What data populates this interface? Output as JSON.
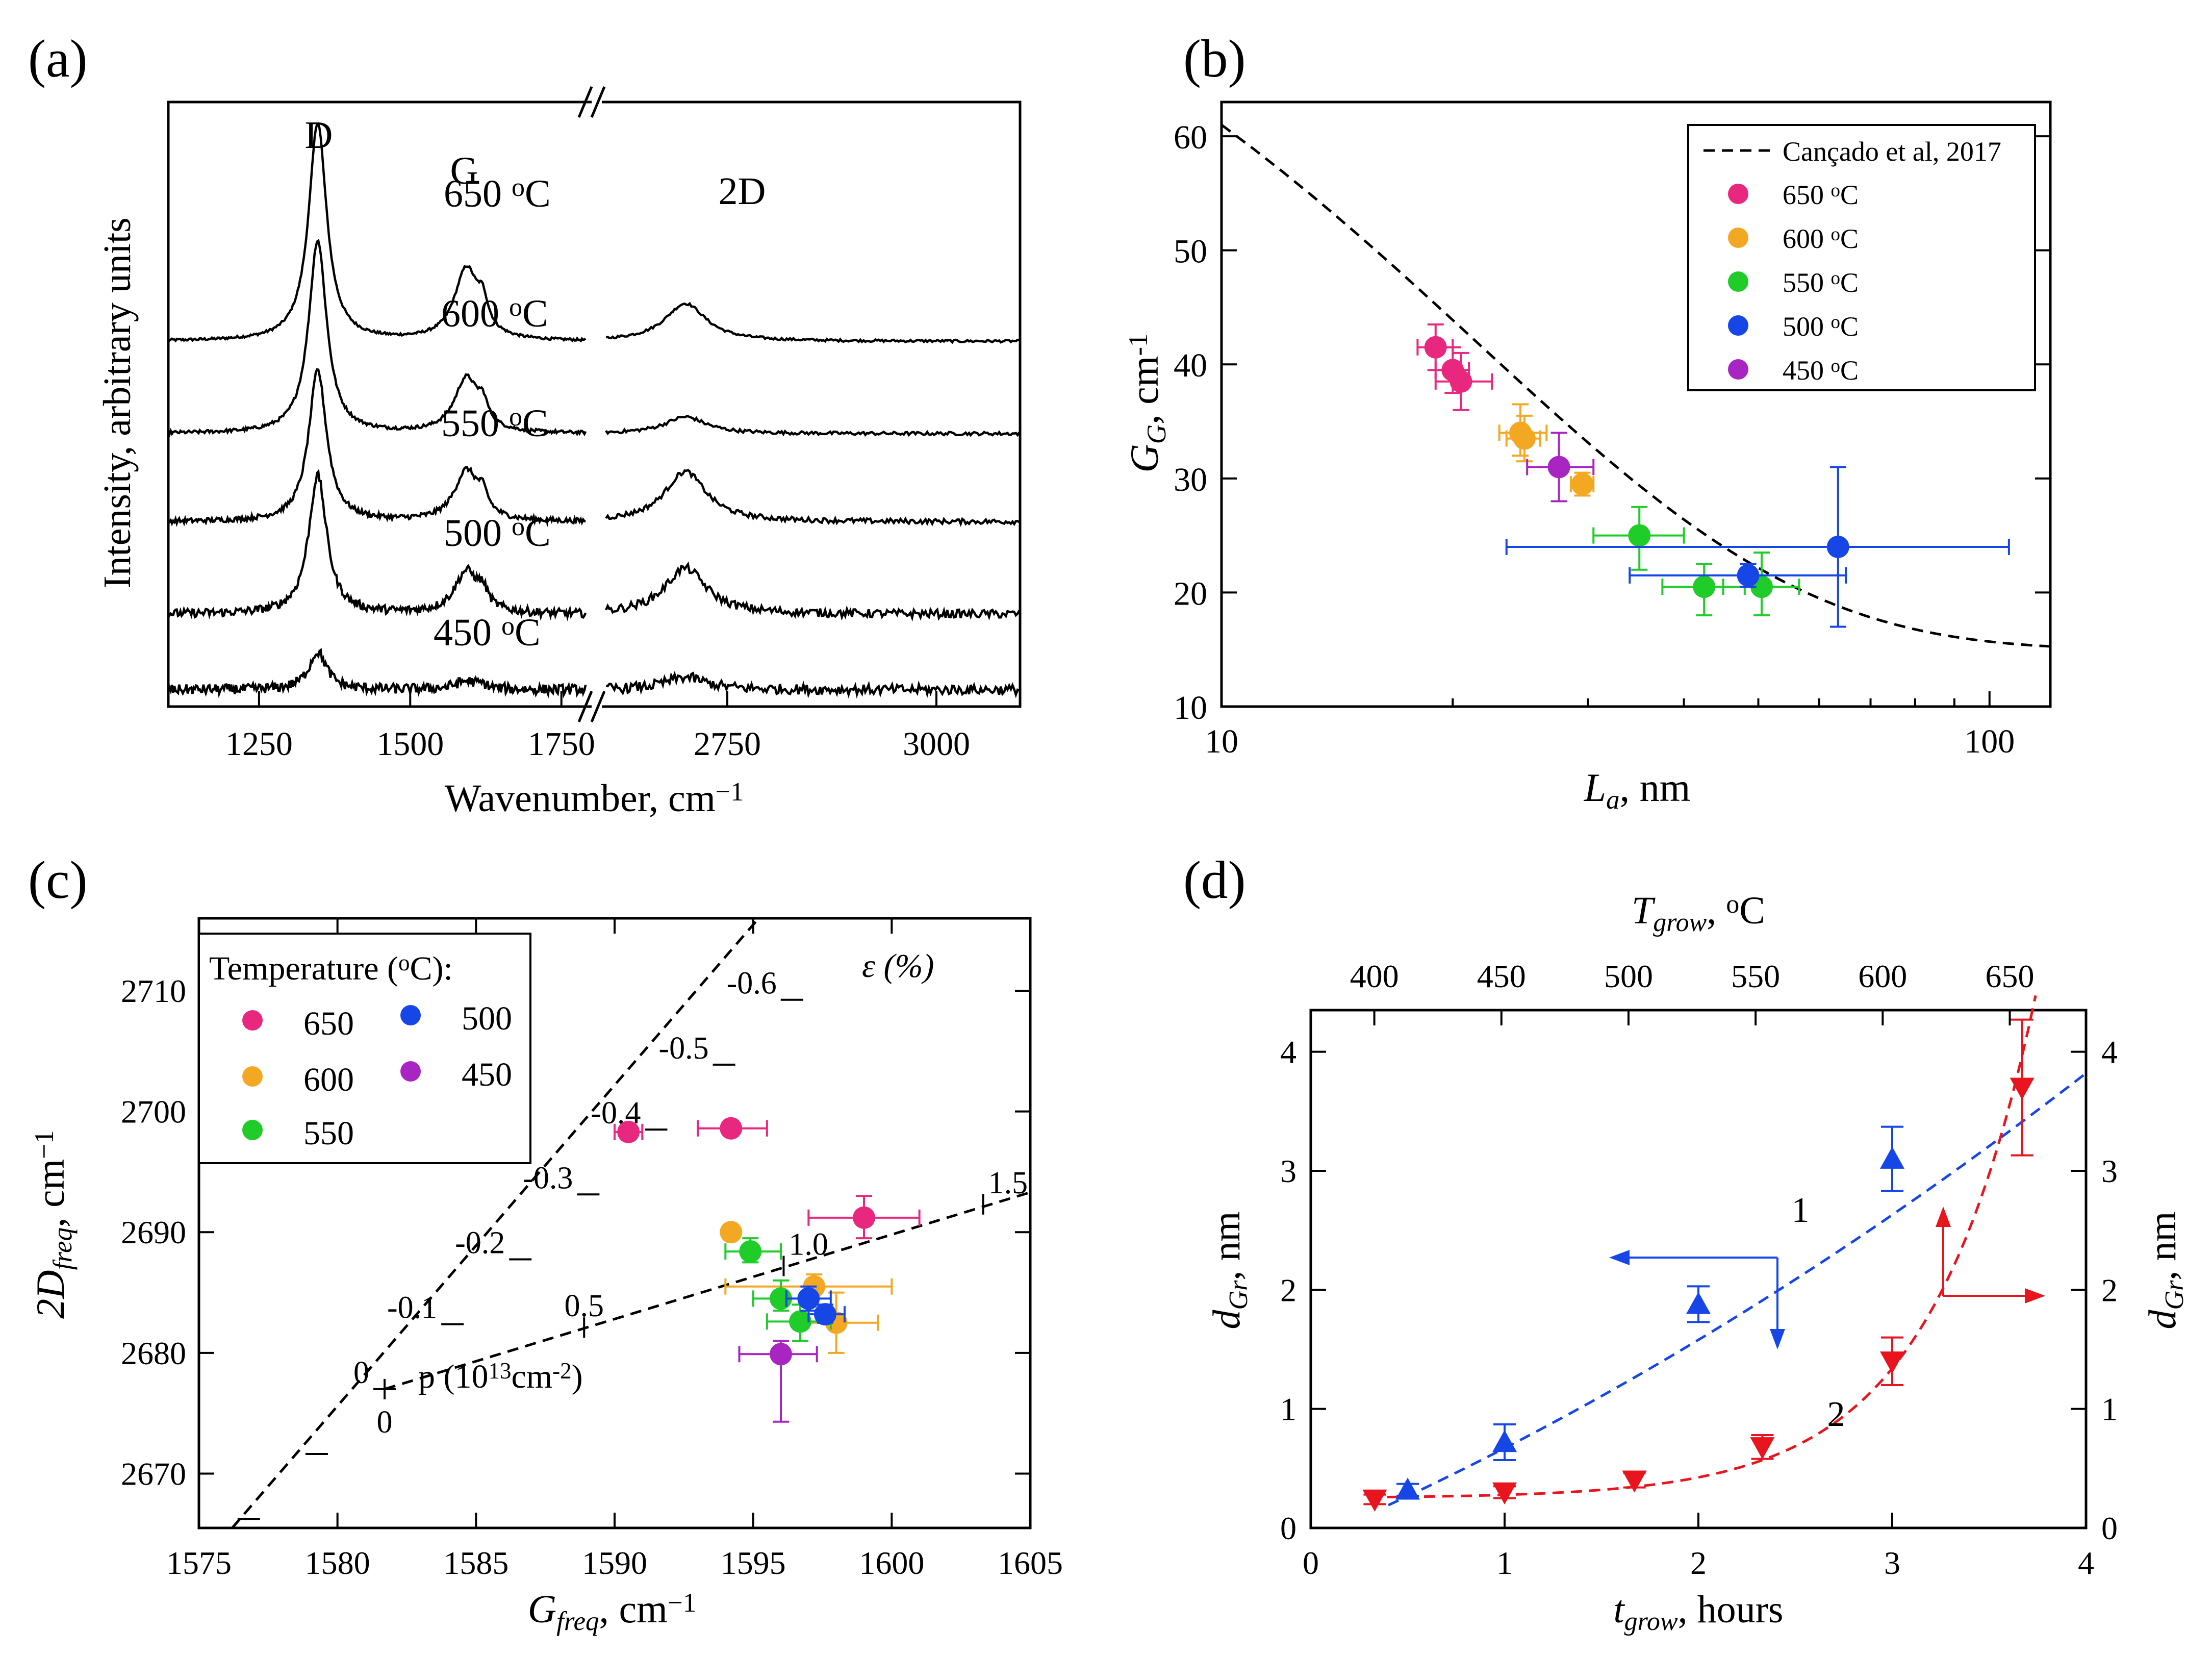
{
  "chart_data": [
    {
      "panel": "(a)",
      "type": "line",
      "xlabel": "Wavenumber, cm",
      "xlabel_sup": "−1",
      "ylabel": "Intensity, arbitrary units",
      "x_ranges": [
        [
          1100,
          1800
        ],
        [
          2600,
          3100
        ]
      ],
      "xticks_left": [
        "1250",
        "1500",
        "1750"
      ],
      "xticks_right": [
        "2750",
        "3000"
      ],
      "peaks": {
        "D": "D",
        "G": "G",
        "2D": "2D"
      },
      "series": [
        {
          "name": "650",
          "label_num": "650 ",
          "label_unit": "C",
          "label_sup": "o",
          "baseline": 4.35,
          "D": 2.6,
          "G": 0.85,
          "D2": 0.45,
          "noise": 0.03
        },
        {
          "name": "600",
          "label_num": "600 ",
          "label_unit": "C",
          "label_sup": "o",
          "baseline": 3.25,
          "D": 2.3,
          "G": 0.65,
          "D2": 0.2,
          "noise": 0.04
        },
        {
          "name": "550",
          "label_num": "550 ",
          "label_unit": "C",
          "label_sup": "o",
          "baseline": 2.2,
          "D": 1.8,
          "G": 0.6,
          "D2": 0.6,
          "noise": 0.06
        },
        {
          "name": "500",
          "label_num": "500 ",
          "label_unit": "C",
          "label_sup": "o",
          "baseline": 1.1,
          "D": 1.65,
          "G": 0.5,
          "D2": 0.55,
          "noise": 0.1
        },
        {
          "name": "450",
          "label_num": "450 ",
          "label_unit": "C",
          "label_sup": "o",
          "baseline": 0.2,
          "D": 0.45,
          "G": 0.1,
          "D2": 0.15,
          "noise": 0.12
        }
      ]
    },
    {
      "panel": "(b)",
      "type": "scatter",
      "xscale": "log",
      "xlim": [
        10,
        120
      ],
      "ylim": [
        10,
        63
      ],
      "xticks": [
        "10",
        "100"
      ],
      "yticks": [
        "10",
        "20",
        "30",
        "40",
        "50",
        "60"
      ],
      "xlabel": "L",
      "xlabel_sub": "a",
      "xlabel_unit": ", nm",
      "ylabel": "G",
      "ylabel_sub": "G",
      "ylabel_unit": ", cm",
      "ylabel_sup": "-1",
      "fit_label": "Cançado et al, 2017",
      "legend": [
        {
          "name": "650",
          "text": "650 ",
          "unit": "C",
          "sup": "o",
          "color": "#e8287f"
        },
        {
          "name": "600",
          "text": "600 ",
          "unit": "C",
          "sup": "o",
          "color": "#f3a823"
        },
        {
          "name": "550",
          "text": "550 ",
          "unit": "C",
          "sup": "o",
          "color": "#1fcc2a"
        },
        {
          "name": "500",
          "text": "500 ",
          "unit": "C",
          "sup": "o",
          "color": "#1646e6"
        },
        {
          "name": "450",
          "text": "450 ",
          "unit": "C",
          "sup": "o",
          "color": "#a925c2"
        }
      ],
      "points": [
        {
          "t": "650",
          "x": 19.0,
          "y": 41.5,
          "xl": 18.0,
          "xh": 20.0,
          "yl": 39.5,
          "yh": 43.5
        },
        {
          "t": "650",
          "x": 20.0,
          "y": 39.5,
          "xl": 19.0,
          "xh": 21.0,
          "yl": 37.5,
          "yh": 41.5
        },
        {
          "t": "650",
          "x": 20.5,
          "y": 38.5,
          "xl": 19.0,
          "xh": 22.5,
          "yl": 36.0,
          "yh": 41.0
        },
        {
          "t": "600",
          "x": 24.5,
          "y": 34.0,
          "xl": 23.0,
          "xh": 26.5,
          "yl": 32.0,
          "yh": 36.5
        },
        {
          "t": "600",
          "x": 24.8,
          "y": 33.5,
          "xl": 23.5,
          "xh": 26.0,
          "yl": 31.5,
          "yh": 35.5
        },
        {
          "t": "600",
          "x": 29.5,
          "y": 29.5,
          "xl": 28.5,
          "xh": 30.5,
          "yl": 28.5,
          "yh": 30.5
        },
        {
          "t": "450",
          "x": 27.5,
          "y": 31.0,
          "xl": 25.0,
          "xh": 30.5,
          "yl": 28.0,
          "yh": 34.0
        },
        {
          "t": "550",
          "x": 35.0,
          "y": 25.0,
          "xl": 30.5,
          "xh": 40.0,
          "yl": 22.0,
          "yh": 27.5
        },
        {
          "t": "550",
          "x": 42.5,
          "y": 20.5,
          "xl": 37.5,
          "xh": 48.0,
          "yl": 18.0,
          "yh": 22.5
        },
        {
          "t": "550",
          "x": 50.5,
          "y": 20.5,
          "xl": 45.0,
          "xh": 56.5,
          "yl": 18.0,
          "yh": 23.5
        },
        {
          "t": "500",
          "x": 48.5,
          "y": 21.5,
          "xl": 34.0,
          "xh": 65.0,
          "yl": 20.5,
          "yh": 22.5
        },
        {
          "t": "500",
          "x": 63.5,
          "y": 24.0,
          "xl": 23.5,
          "xh": 106.0,
          "yl": 17.0,
          "yh": 31.0
        }
      ]
    },
    {
      "panel": "(c)",
      "type": "scatter",
      "xlim": [
        1575,
        1605
      ],
      "ylim": [
        2665.5,
        2716
      ],
      "xticks": [
        "1575",
        "1580",
        "1585",
        "1590",
        "1595",
        "1600",
        "1605"
      ],
      "yticks": [
        "2670",
        "2680",
        "2690",
        "2700",
        "2710"
      ],
      "xlabel": "G",
      "xlabel_sub": "freq",
      "xlabel_unit": ", cm",
      "xlabel_sup": "−1",
      "ylabel": "2D",
      "ylabel_sub": "freq",
      "ylabel_unit": ", cm",
      "ylabel_sup": "−1",
      "legend_title": "Temperature (",
      "legend_title_sup": "o",
      "legend_title_end": "C):",
      "legend": [
        {
          "name": "650",
          "text": "650",
          "color": "#e8287f"
        },
        {
          "name": "600",
          "text": "600",
          "color": "#f3a823"
        },
        {
          "name": "550",
          "text": "550",
          "color": "#1fcc2a"
        },
        {
          "name": "500",
          "text": "500",
          "color": "#1646e6"
        },
        {
          "name": "450",
          "text": "450",
          "color": "#a925c2"
        }
      ],
      "strain_label": "ε (%)",
      "strain_ticks": [
        "0",
        "-0.1",
        "-0.2",
        "-0.3",
        "-0.4",
        "-0.5",
        "-0.6"
      ],
      "doping_label": "p (10",
      "doping_label_sup": "13",
      "doping_label_end": "cm",
      "doping_label_sup2": "-2",
      "doping_label_close": ")",
      "doping_ticks": [
        "0",
        "0.5",
        "1.0",
        "1.5"
      ],
      "points": [
        {
          "t": "650",
          "x": 1590.5,
          "y": 2698.3,
          "xl": 1590.0,
          "xh": 1591.0,
          "yl": 2698.3,
          "yh": 2698.3
        },
        {
          "t": "650",
          "x": 1594.2,
          "y": 2698.6,
          "xl": 1593.0,
          "xh": 1595.5,
          "yl": 2698.6,
          "yh": 2698.6
        },
        {
          "t": "650",
          "x": 1599.0,
          "y": 2691.2,
          "xl": 1597.0,
          "xh": 1601.0,
          "yl": 2689.5,
          "yh": 2693.0
        },
        {
          "t": "600",
          "x": 1594.2,
          "y": 2690.0,
          "xl": 1594.2,
          "xh": 1594.2,
          "yl": 2690.0,
          "yh": 2690.0
        },
        {
          "t": "600",
          "x": 1597.2,
          "y": 2685.5,
          "xl": 1594.0,
          "xh": 1600.0,
          "yl": 2684.5,
          "yh": 2686.5
        },
        {
          "t": "600",
          "x": 1598.0,
          "y": 2682.5,
          "xl": 1596.5,
          "xh": 1599.5,
          "yl": 2680.0,
          "yh": 2685.0
        },
        {
          "t": "550",
          "x": 1594.9,
          "y": 2688.4,
          "xl": 1594.0,
          "xh": 1596.0,
          "yl": 2687.5,
          "yh": 2689.5
        },
        {
          "t": "550",
          "x": 1596.0,
          "y": 2684.5,
          "xl": 1595.0,
          "xh": 1597.0,
          "yl": 2683.5,
          "yh": 2686.0
        },
        {
          "t": "550",
          "x": 1596.7,
          "y": 2682.6,
          "xl": 1595.5,
          "xh": 1597.8,
          "yl": 2681.0,
          "yh": 2684.0
        },
        {
          "t": "500",
          "x": 1597.0,
          "y": 2684.5,
          "xl": 1596.2,
          "xh": 1597.8,
          "yl": 2683.5,
          "yh": 2685.5
        },
        {
          "t": "500",
          "x": 1597.6,
          "y": 2683.2,
          "xl": 1597.0,
          "xh": 1598.3,
          "yl": 2682.5,
          "yh": 2684.0
        },
        {
          "t": "450",
          "x": 1596.0,
          "y": 2679.9,
          "xl": 1594.5,
          "xh": 1597.3,
          "yl": 2674.3,
          "yh": 2681.0
        }
      ]
    },
    {
      "panel": "(d)",
      "type": "scatter",
      "xlim": [
        0,
        4
      ],
      "ylim": [
        0,
        4.35
      ],
      "xticks": [
        "0",
        "1",
        "2",
        "3",
        "4"
      ],
      "yticks": [
        "0",
        "1",
        "2",
        "3",
        "4"
      ],
      "top_ticks": [
        "400",
        "450",
        "500",
        "550",
        "600",
        "650"
      ],
      "top_tick_values": [
        400,
        450,
        500,
        550,
        600,
        650
      ],
      "top_label": "T",
      "top_label_sub": "grow",
      "top_label_unit": ", ",
      "top_label_sup": "o",
      "top_label_end": "C",
      "xlabel": "t",
      "xlabel_sub": "grow",
      "xlabel_unit": ", hours",
      "ylabel": "d",
      "ylabel_sub": "Gr",
      "ylabel_unit": ", nm",
      "curve_labels": [
        "1",
        "2"
      ],
      "series": [
        {
          "name": "1",
          "color": "#1646e6",
          "marker": "up-triangle",
          "x": [
            0.5,
            1.0,
            2.0,
            3.0
          ],
          "y": [
            0.32,
            0.72,
            1.88,
            3.1
          ],
          "err": [
            0.05,
            0.15,
            0.15,
            0.27
          ]
        },
        {
          "name": "2",
          "color": "#e8141e",
          "marker": "down-triangle",
          "x": [
            0.33,
            1.0,
            1.67,
            2.33,
            3.0,
            3.67
          ],
          "y": [
            0.24,
            0.3,
            0.4,
            0.68,
            1.4,
            3.7
          ],
          "err": [
            0.04,
            0.05,
            0.06,
            0.1,
            0.2,
            0.57
          ]
        }
      ]
    }
  ]
}
